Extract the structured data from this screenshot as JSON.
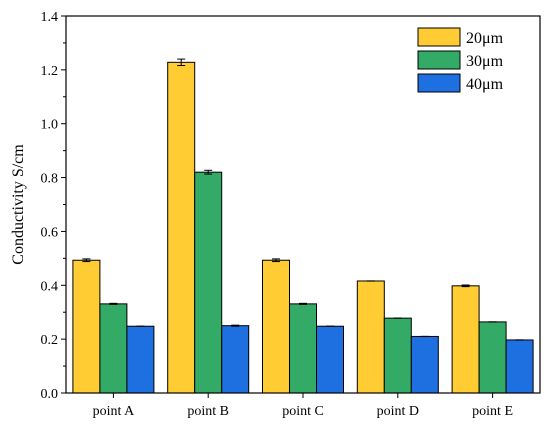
{
  "chart_data": {
    "type": "bar",
    "title": "",
    "xlabel": "",
    "ylabel": "Conductivity S/cm",
    "ylim": [
      0,
      1.4
    ],
    "yticks": [
      "0.0",
      "0.2",
      "0.4",
      "0.6",
      "0.8",
      "1.0",
      "1.2",
      "1.4"
    ],
    "categories": [
      "point A",
      "point B",
      "point C",
      "point D",
      "point E"
    ],
    "series": [
      {
        "name": "20μm",
        "color": "#FFCC33",
        "values": [
          0.493,
          1.228,
          0.493,
          0.416,
          0.398
        ],
        "errors": [
          0.005,
          0.012,
          0.005,
          0.0,
          0.003
        ]
      },
      {
        "name": "30μm",
        "color": "#33AA66",
        "values": [
          0.331,
          0.82,
          0.331,
          0.278,
          0.264
        ],
        "errors": [
          0.002,
          0.007,
          0.002,
          0.0,
          0.0
        ]
      },
      {
        "name": "40μm",
        "color": "#1E6FE0",
        "values": [
          0.248,
          0.25,
          0.248,
          0.21,
          0.197
        ],
        "errors": [
          0.0,
          0.002,
          0.0,
          0.0,
          0.0
        ]
      }
    ],
    "legend_position": "top-right",
    "grid": false
  }
}
